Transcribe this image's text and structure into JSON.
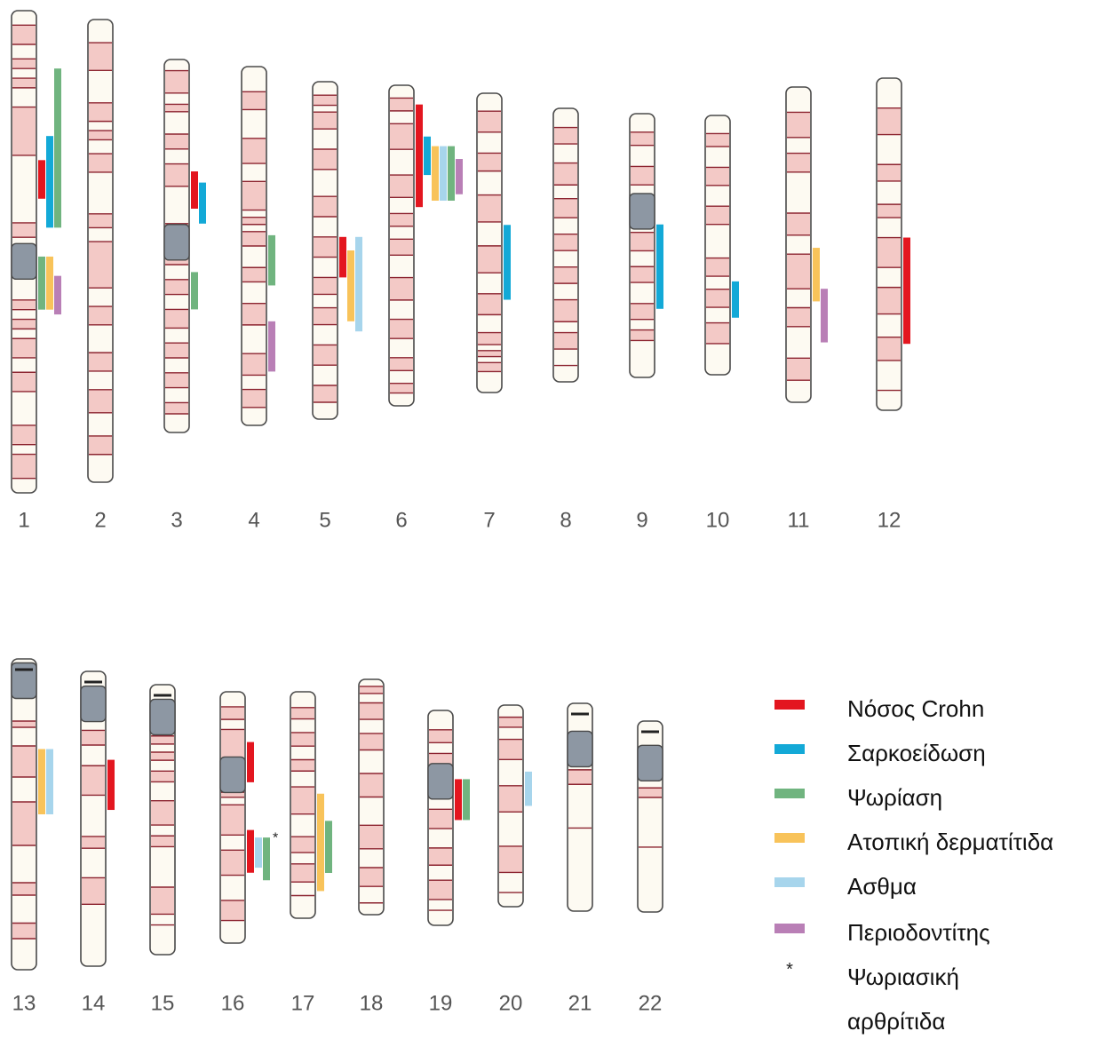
{
  "diseases": [
    {
      "key": "crohn",
      "name": "Νόσος  Crohn",
      "color": "#e3161f"
    },
    {
      "key": "sarc",
      "name": "Σαρκοείδωση",
      "color": "#13a9d7"
    },
    {
      "key": "psor",
      "name": "Ψωρίαση",
      "color": "#70b47f"
    },
    {
      "key": "atopic",
      "name": "Ατοπική  δερματίτιδα",
      "color": "#f8c35a"
    },
    {
      "key": "asthma",
      "name": "Ασθμα",
      "color": "#a7d5ec"
    },
    {
      "key": "perio",
      "name": "Περιοδοντίτης",
      "color": "#b97fb6"
    },
    {
      "key": "psa",
      "name": "Ψωριασική",
      "name2": "αρθρίτιδα",
      "symbol": "*"
    }
  ],
  "colors": {
    "band": "#f3c9c6",
    "band_line": "#8c2430",
    "centromere": "#8d97a3",
    "outline": "#4a4a4a",
    "body": "#fdfaf2"
  },
  "chromosomes": [
    {
      "label": "1",
      "centromere": 0.52,
      "stalk": false,
      "bands": [
        0.03,
        0.07,
        0.1,
        0.12,
        0.14,
        0.16,
        0.2,
        0.3,
        0.44,
        0.47,
        0.6,
        0.62,
        0.64,
        0.66,
        0.68,
        0.72,
        0.75,
        0.79,
        0.86,
        0.9,
        0.92,
        0.97
      ]
    },
    {
      "label": "2",
      "centromere": null,
      "stalk": false,
      "bands": [
        0.05,
        0.11,
        0.18,
        0.22,
        0.24,
        0.26,
        0.29,
        0.33,
        0.42,
        0.45,
        0.48,
        0.58,
        0.62,
        0.66,
        0.72,
        0.76,
        0.8,
        0.85,
        0.9,
        0.94
      ]
    },
    {
      "label": "3",
      "centromere": 0.49,
      "stalk": false,
      "bands": [
        0.03,
        0.09,
        0.12,
        0.14,
        0.2,
        0.24,
        0.28,
        0.34,
        0.44,
        0.55,
        0.59,
        0.63,
        0.67,
        0.72,
        0.76,
        0.8,
        0.84,
        0.88,
        0.92,
        0.95
      ]
    },
    {
      "label": "4",
      "centromere": null,
      "stalk": false,
      "bands": [
        0.07,
        0.12,
        0.2,
        0.27,
        0.32,
        0.4,
        0.42,
        0.44,
        0.46,
        0.5,
        0.56,
        0.6,
        0.66,
        0.72,
        0.8,
        0.86,
        0.9,
        0.95
      ]
    },
    {
      "label": "5",
      "centromere": null,
      "stalk": false,
      "bands": [
        0.04,
        0.07,
        0.09,
        0.14,
        0.2,
        0.26,
        0.34,
        0.4,
        0.46,
        0.52,
        0.58,
        0.63,
        0.67,
        0.72,
        0.78,
        0.84,
        0.9,
        0.95
      ]
    },
    {
      "label": "6",
      "centromere": null,
      "stalk": false,
      "bands": [
        0.04,
        0.08,
        0.12,
        0.2,
        0.28,
        0.35,
        0.4,
        0.44,
        0.48,
        0.53,
        0.6,
        0.67,
        0.73,
        0.79,
        0.85,
        0.89,
        0.93,
        0.96
      ]
    },
    {
      "label": "7",
      "centromere": null,
      "stalk": false,
      "bands": [
        0.06,
        0.13,
        0.2,
        0.26,
        0.34,
        0.43,
        0.51,
        0.6,
        0.67,
        0.74,
        0.8,
        0.84,
        0.86,
        0.88,
        0.9,
        0.93
      ]
    },
    {
      "label": "8",
      "centromere": null,
      "stalk": false,
      "bands": [
        0.07,
        0.13,
        0.2,
        0.28,
        0.33,
        0.4,
        0.46,
        0.52,
        0.58,
        0.64,
        0.7,
        0.78,
        0.82,
        0.88,
        0.94
      ]
    },
    {
      "label": "9",
      "centromere": 0.37,
      "stalk": false,
      "bands": [
        0.07,
        0.12,
        0.2,
        0.27,
        0.45,
        0.52,
        0.58,
        0.64,
        0.72,
        0.78,
        0.82,
        0.86
      ]
    },
    {
      "label": "10",
      "centromere": null,
      "stalk": false,
      "bands": [
        0.07,
        0.12,
        0.2,
        0.27,
        0.35,
        0.42,
        0.55,
        0.62,
        0.67,
        0.74,
        0.8,
        0.88
      ]
    },
    {
      "label": "11",
      "centromere": null,
      "stalk": false,
      "bands": [
        0.08,
        0.16,
        0.21,
        0.27,
        0.4,
        0.47,
        0.53,
        0.64,
        0.7,
        0.76,
        0.86,
        0.93
      ]
    },
    {
      "label": "12",
      "centromere": null,
      "stalk": false,
      "bands": [
        0.09,
        0.17,
        0.26,
        0.31,
        0.38,
        0.42,
        0.48,
        0.57,
        0.63,
        0.71,
        0.78,
        0.85,
        0.94
      ]
    },
    {
      "label": "13",
      "centromere": 0.07,
      "stalk": true,
      "bands": [
        0.2,
        0.22,
        0.28,
        0.38,
        0.46,
        0.6,
        0.72,
        0.76,
        0.85,
        0.9
      ]
    },
    {
      "label": "14",
      "centromere": 0.11,
      "stalk": true,
      "bands": [
        0.2,
        0.25,
        0.32,
        0.42,
        0.56,
        0.6,
        0.7,
        0.79
      ]
    },
    {
      "label": "15",
      "centromere": 0.12,
      "stalk": true,
      "bands": [
        0.19,
        0.22,
        0.25,
        0.28,
        0.32,
        0.36,
        0.43,
        0.52,
        0.56,
        0.6,
        0.75,
        0.85,
        0.89
      ]
    },
    {
      "label": "16",
      "centromere": 0.33,
      "stalk": false,
      "bands": [
        0.06,
        0.11,
        0.15,
        0.27,
        0.4,
        0.42,
        0.45,
        0.57,
        0.63,
        0.73,
        0.83,
        0.91
      ]
    },
    {
      "label": "17",
      "centromere": null,
      "stalk": false,
      "bands": [
        0.07,
        0.12,
        0.18,
        0.24,
        0.3,
        0.35,
        0.42,
        0.54,
        0.64,
        0.71,
        0.76,
        0.84,
        0.9
      ]
    },
    {
      "label": "18",
      "centromere": null,
      "stalk": false,
      "bands": [
        0.03,
        0.06,
        0.1,
        0.17,
        0.23,
        0.3,
        0.4,
        0.5,
        0.62,
        0.72,
        0.8,
        0.88,
        0.95
      ]
    },
    {
      "label": "19",
      "centromere": 0.33,
      "stalk": false,
      "bands": [
        0.09,
        0.15,
        0.2,
        0.28,
        0.46,
        0.55,
        0.64,
        0.72,
        0.79,
        0.88,
        0.93
      ]
    },
    {
      "label": "20",
      "centromere": null,
      "stalk": false,
      "bands": [
        0.06,
        0.11,
        0.17,
        0.27,
        0.4,
        0.53,
        0.7,
        0.83,
        0.93
      ]
    },
    {
      "label": "21",
      "centromere": 0.22,
      "stalk": true,
      "bands": [
        0.32,
        0.39,
        0.6
      ]
    },
    {
      "label": "22",
      "centromere": 0.22,
      "stalk": true,
      "bands": [
        0.35,
        0.4,
        0.66
      ]
    }
  ],
  "loci": [
    {
      "chr": "1",
      "disease": "crohn",
      "lane": 0,
      "start": 0.31,
      "end": 0.39
    },
    {
      "chr": "1",
      "disease": "sarc",
      "lane": 1,
      "start": 0.26,
      "end": 0.45
    },
    {
      "chr": "1",
      "disease": "psor",
      "lane": 2,
      "start": 0.12,
      "end": 0.45
    },
    {
      "chr": "1",
      "disease": "psor",
      "lane": 0,
      "start": 0.51,
      "end": 0.62
    },
    {
      "chr": "1",
      "disease": "atopic",
      "lane": 1,
      "start": 0.51,
      "end": 0.62
    },
    {
      "chr": "1",
      "disease": "perio",
      "lane": 2,
      "start": 0.55,
      "end": 0.63
    },
    {
      "chr": "3",
      "disease": "crohn",
      "lane": 0,
      "start": 0.3,
      "end": 0.4
    },
    {
      "chr": "3",
      "disease": "sarc",
      "lane": 1,
      "start": 0.33,
      "end": 0.44
    },
    {
      "chr": "3",
      "disease": "psor",
      "lane": 0,
      "start": 0.57,
      "end": 0.67
    },
    {
      "chr": "4",
      "disease": "psor",
      "lane": 0,
      "start": 0.47,
      "end": 0.61
    },
    {
      "chr": "4",
      "disease": "perio",
      "lane": 0,
      "start": 0.71,
      "end": 0.85
    },
    {
      "chr": "5",
      "disease": "crohn",
      "lane": 0,
      "start": 0.46,
      "end": 0.58
    },
    {
      "chr": "5",
      "disease": "atopic",
      "lane": 1,
      "start": 0.5,
      "end": 0.71
    },
    {
      "chr": "5",
      "disease": "asthma",
      "lane": 2,
      "start": 0.46,
      "end": 0.74
    },
    {
      "chr": "6",
      "disease": "crohn",
      "lane": 0,
      "start": 0.06,
      "end": 0.38
    },
    {
      "chr": "6",
      "disease": "sarc",
      "lane": 1,
      "start": 0.16,
      "end": 0.28
    },
    {
      "chr": "6",
      "disease": "atopic",
      "lane": 2,
      "start": 0.19,
      "end": 0.36
    },
    {
      "chr": "6",
      "disease": "asthma",
      "lane": 3,
      "start": 0.19,
      "end": 0.36
    },
    {
      "chr": "6",
      "disease": "psor",
      "lane": 4,
      "start": 0.19,
      "end": 0.36
    },
    {
      "chr": "6",
      "disease": "perio",
      "lane": 5,
      "start": 0.23,
      "end": 0.34
    },
    {
      "chr": "7",
      "disease": "sarc",
      "lane": 0,
      "start": 0.44,
      "end": 0.69
    },
    {
      "chr": "9",
      "disease": "sarc",
      "lane": 0,
      "start": 0.42,
      "end": 0.74
    },
    {
      "chr": "10",
      "disease": "sarc",
      "lane": 0,
      "start": 0.64,
      "end": 0.78
    },
    {
      "chr": "11",
      "disease": "atopic",
      "lane": 0,
      "start": 0.51,
      "end": 0.68
    },
    {
      "chr": "11",
      "disease": "perio",
      "lane": 1,
      "start": 0.64,
      "end": 0.81
    },
    {
      "chr": "12",
      "disease": "crohn",
      "lane": 0,
      "start": 0.48,
      "end": 0.8
    },
    {
      "chr": "13",
      "disease": "atopic",
      "lane": 0,
      "start": 0.29,
      "end": 0.5
    },
    {
      "chr": "13",
      "disease": "asthma",
      "lane": 1,
      "start": 0.29,
      "end": 0.5
    },
    {
      "chr": "14",
      "disease": "crohn",
      "lane": 0,
      "start": 0.3,
      "end": 0.47
    },
    {
      "chr": "16",
      "disease": "crohn",
      "lane": 0,
      "start": 0.2,
      "end": 0.36
    },
    {
      "chr": "16",
      "disease": "crohn",
      "lane": 0,
      "start": 0.55,
      "end": 0.72,
      "mark": "*"
    },
    {
      "chr": "16",
      "disease": "asthma",
      "lane": 1,
      "start": 0.58,
      "end": 0.7
    },
    {
      "chr": "16",
      "disease": "psor",
      "lane": 2,
      "start": 0.58,
      "end": 0.75
    },
    {
      "chr": "17",
      "disease": "atopic",
      "lane": 0,
      "start": 0.45,
      "end": 0.88
    },
    {
      "chr": "17",
      "disease": "psor",
      "lane": 1,
      "start": 0.57,
      "end": 0.8
    },
    {
      "chr": "19",
      "disease": "crohn",
      "lane": 0,
      "start": 0.32,
      "end": 0.51
    },
    {
      "chr": "19",
      "disease": "psor",
      "lane": 1,
      "start": 0.32,
      "end": 0.51
    },
    {
      "chr": "20",
      "disease": "asthma",
      "lane": 0,
      "start": 0.33,
      "end": 0.5
    }
  ]
}
